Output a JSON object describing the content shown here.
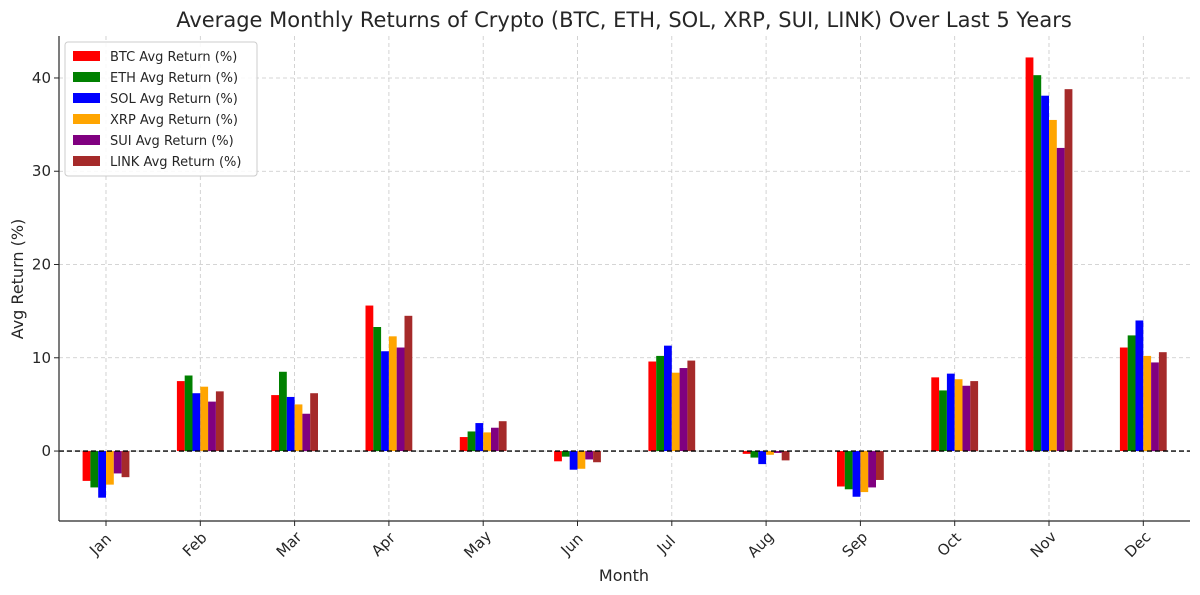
{
  "chart_data": {
    "type": "bar",
    "title": "Average Monthly Returns of Crypto (BTC, ETH, SOL, XRP, SUI, LINK) Over Last 5 Years",
    "xlabel": "Month",
    "ylabel": "Avg Return (%)",
    "ylim": [
      -7.5,
      44.5
    ],
    "yticks": [
      0,
      10,
      20,
      30,
      40
    ],
    "grid": true,
    "legend_position": "top-left",
    "categories": [
      "Jan",
      "Feb",
      "Mar",
      "Apr",
      "May",
      "Jun",
      "Jul",
      "Aug",
      "Sep",
      "Oct",
      "Nov",
      "Dec"
    ],
    "series": [
      {
        "name": "BTC Avg Return (%)",
        "color": "#ff0000",
        "values": [
          -3.2,
          7.5,
          6.0,
          15.6,
          1.5,
          -1.1,
          9.6,
          -0.3,
          -3.8,
          7.9,
          42.2,
          11.1
        ]
      },
      {
        "name": "ETH Avg Return (%)",
        "color": "#008000",
        "values": [
          -3.9,
          8.1,
          8.5,
          13.3,
          2.1,
          -0.6,
          10.2,
          -0.7,
          -4.1,
          6.5,
          40.3,
          12.4
        ]
      },
      {
        "name": "SOL Avg Return (%)",
        "color": "#0000ff",
        "values": [
          -5.0,
          6.2,
          5.8,
          10.7,
          3.0,
          -2.0,
          11.3,
          -1.4,
          -4.9,
          8.3,
          38.1,
          14.0
        ]
      },
      {
        "name": "XRP Avg Return (%)",
        "color": "#ffa500",
        "values": [
          -3.6,
          6.9,
          5.0,
          12.3,
          2.0,
          -1.9,
          8.4,
          -0.4,
          -4.4,
          7.7,
          35.5,
          10.2
        ]
      },
      {
        "name": "SUI Avg Return (%)",
        "color": "#800080",
        "values": [
          -2.4,
          5.3,
          4.0,
          11.1,
          2.5,
          -0.9,
          8.9,
          -0.2,
          -3.9,
          7.0,
          32.5,
          9.5
        ]
      },
      {
        "name": "LINK Avg Return (%)",
        "color": "#a52a2a",
        "values": [
          -2.8,
          6.4,
          6.2,
          14.5,
          3.2,
          -1.2,
          9.7,
          -1.0,
          -3.1,
          7.5,
          38.8,
          10.6
        ]
      }
    ]
  }
}
